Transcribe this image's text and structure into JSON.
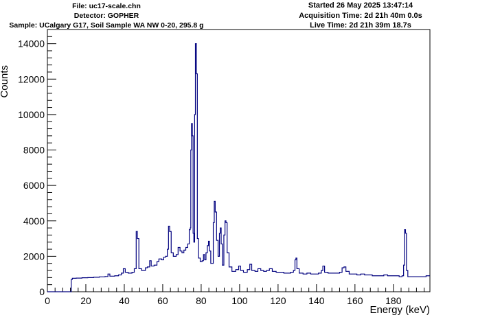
{
  "header": {
    "file": "File: uc17-scale.chn",
    "detector": "Detector: GOPHER",
    "sample": "Sample: UCalgary G17, Soil Sample WA NW 0-20, 295.8 g",
    "started": "Started 26 May 2025 13:47:14",
    "acquisition_time": "Acquisition Time: 2d 21h 40m 0.0s",
    "live_time": "Live Time: 2d 21h 39m 18.7s"
  },
  "colors": {
    "line": "#00007f",
    "axis": "#000000",
    "background": "#ffffff"
  },
  "chart_data": {
    "type": "line",
    "title": "",
    "xlabel": "Energy (keV)",
    "ylabel": "Counts",
    "xlim": [
      0,
      199
    ],
    "ylim": [
      0,
      14800
    ],
    "x_ticks": [
      0,
      20,
      40,
      60,
      80,
      100,
      120,
      140,
      160,
      180
    ],
    "y_ticks": [
      0,
      2000,
      4000,
      6000,
      8000,
      10000,
      12000,
      14000
    ],
    "grid": false,
    "legend": "none",
    "series": [
      {
        "name": "",
        "points": [
          [
            0,
            0
          ],
          [
            12.3,
            0
          ],
          [
            12.4,
            700
          ],
          [
            13,
            760
          ],
          [
            15,
            770
          ],
          [
            18,
            790
          ],
          [
            21,
            800
          ],
          [
            24,
            820
          ],
          [
            27,
            840
          ],
          [
            30,
            860
          ],
          [
            31.5,
            1000
          ],
          [
            32.5,
            880
          ],
          [
            35,
            900
          ],
          [
            37,
            950
          ],
          [
            38.5,
            1050
          ],
          [
            39.5,
            1300
          ],
          [
            40.5,
            1100
          ],
          [
            42,
            1050
          ],
          [
            44,
            1100
          ],
          [
            45.2,
            1300
          ],
          [
            46.2,
            3400
          ],
          [
            46.8,
            3000
          ],
          [
            47.6,
            1300
          ],
          [
            49,
            1200
          ],
          [
            51,
            1350
          ],
          [
            52,
            1400
          ],
          [
            53.2,
            1750
          ],
          [
            54,
            1450
          ],
          [
            55.5,
            1500
          ],
          [
            57,
            1700
          ],
          [
            58,
            1850
          ],
          [
            59.5,
            1800
          ],
          [
            60.5,
            1950
          ],
          [
            61.5,
            2000
          ],
          [
            62.4,
            2400
          ],
          [
            63,
            3700
          ],
          [
            63.6,
            3400
          ],
          [
            64.4,
            2200
          ],
          [
            65.5,
            2000
          ],
          [
            67,
            2100
          ],
          [
            68,
            2500
          ],
          [
            69,
            2300
          ],
          [
            70,
            2200
          ],
          [
            71,
            2350
          ],
          [
            72,
            2500
          ],
          [
            73,
            2700
          ],
          [
            73.8,
            3500
          ],
          [
            74.3,
            3600
          ],
          [
            74.6,
            8000
          ],
          [
            75,
            9500
          ],
          [
            75.4,
            8800
          ],
          [
            75.8,
            3300
          ],
          [
            76.2,
            2800
          ],
          [
            76.6,
            10000
          ],
          [
            77,
            14000
          ],
          [
            77.5,
            12300
          ],
          [
            78,
            3000
          ],
          [
            78.6,
            1900
          ],
          [
            79.5,
            1700
          ],
          [
            80.5,
            1750
          ],
          [
            81.2,
            2100
          ],
          [
            81.8,
            1800
          ],
          [
            82.5,
            2200
          ],
          [
            83.2,
            2600
          ],
          [
            83.8,
            2850
          ],
          [
            84.3,
            2300
          ],
          [
            85,
            1600
          ],
          [
            86.3,
            3900
          ],
          [
            86.8,
            5100
          ],
          [
            87.3,
            4500
          ],
          [
            88,
            2900
          ],
          [
            88.8,
            2000
          ],
          [
            89.5,
            3300
          ],
          [
            89.9,
            3600
          ],
          [
            90.4,
            2700
          ],
          [
            91,
            1500
          ],
          [
            91.8,
            3200
          ],
          [
            92.4,
            4000
          ],
          [
            92.9,
            3900
          ],
          [
            93.5,
            2200
          ],
          [
            94.5,
            1400
          ],
          [
            96,
            1150
          ],
          [
            98,
            1250
          ],
          [
            99.5,
            1450
          ],
          [
            100.5,
            1200
          ],
          [
            102,
            1100
          ],
          [
            104,
            1250
          ],
          [
            105.3,
            1550
          ],
          [
            106.3,
            1200
          ],
          [
            108,
            1150
          ],
          [
            109.5,
            1300
          ],
          [
            111,
            1200
          ],
          [
            112.5,
            1150
          ],
          [
            114,
            1200
          ],
          [
            115.5,
            1300
          ],
          [
            117,
            1150
          ],
          [
            119,
            1100
          ],
          [
            121,
            1100
          ],
          [
            123,
            1050
          ],
          [
            125,
            1050
          ],
          [
            126.5,
            1100
          ],
          [
            128,
            1200
          ],
          [
            128.8,
            1800
          ],
          [
            129.3,
            1900
          ],
          [
            129.8,
            1300
          ],
          [
            131,
            1050
          ],
          [
            133,
            1000
          ],
          [
            135,
            1050
          ],
          [
            137,
            1000
          ],
          [
            139,
            1000
          ],
          [
            141,
            1050
          ],
          [
            142.5,
            1200
          ],
          [
            143.3,
            1450
          ],
          [
            144.2,
            1100
          ],
          [
            146,
            1050
          ],
          [
            148,
            1050
          ],
          [
            150,
            1050
          ],
          [
            152,
            1100
          ],
          [
            153.3,
            1350
          ],
          [
            154.3,
            1400
          ],
          [
            155.3,
            1150
          ],
          [
            157,
            1000
          ],
          [
            159,
            1000
          ],
          [
            161,
            950
          ],
          [
            163,
            1000
          ],
          [
            165,
            950
          ],
          [
            167,
            950
          ],
          [
            169,
            900
          ],
          [
            171,
            900
          ],
          [
            173,
            900
          ],
          [
            175,
            950
          ],
          [
            177,
            900
          ],
          [
            179,
            900
          ],
          [
            181,
            900
          ],
          [
            183,
            850
          ],
          [
            184.5,
            900
          ],
          [
            185.3,
            1500
          ],
          [
            185.8,
            3500
          ],
          [
            186.3,
            3300
          ],
          [
            186.8,
            1200
          ],
          [
            187.5,
            850
          ],
          [
            189,
            850
          ],
          [
            191,
            850
          ],
          [
            193,
            850
          ],
          [
            195,
            850
          ],
          [
            197,
            900
          ],
          [
            199,
            900
          ]
        ]
      }
    ]
  }
}
